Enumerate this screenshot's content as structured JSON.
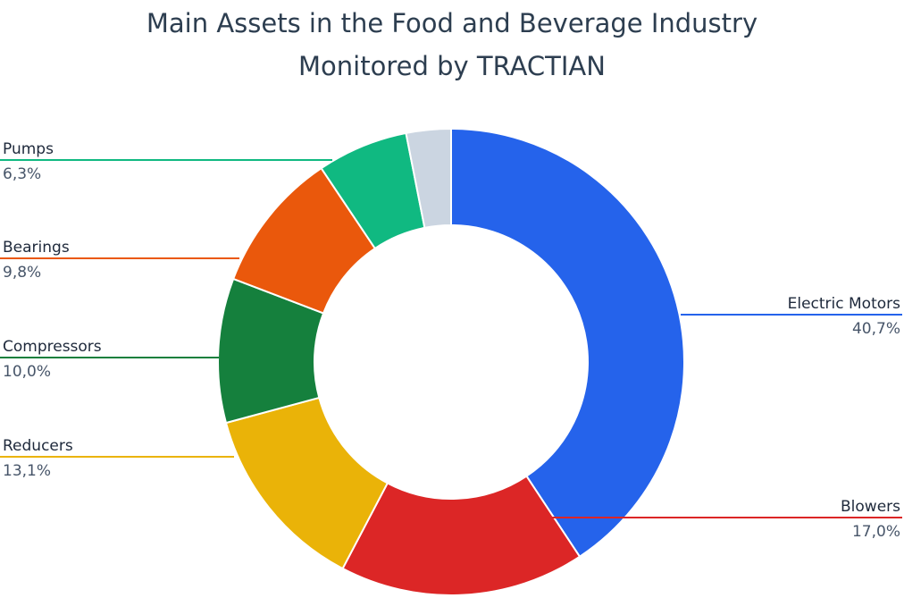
{
  "chart_data": {
    "type": "donut",
    "title_lines": [
      "Main Assets in the Food and Beverage Industry",
      "Monitored by TRACTIAN"
    ],
    "categories": [
      "Electric Motors",
      "Blowers",
      "Reducers",
      "Compressors",
      "Bearings",
      "Pumps",
      null
    ],
    "values": [
      40.7,
      17.0,
      13.1,
      10.0,
      9.8,
      6.3,
      3.1
    ],
    "value_labels": [
      "40,7%",
      "17,0%",
      "13,1%",
      "10,0%",
      "9,8%",
      "6,3%",
      null
    ],
    "colors": [
      "#2563eb",
      "#dc2626",
      "#eab308",
      "#15803d",
      "#ea580c",
      "#10b981",
      "#cbd5e1"
    ]
  }
}
